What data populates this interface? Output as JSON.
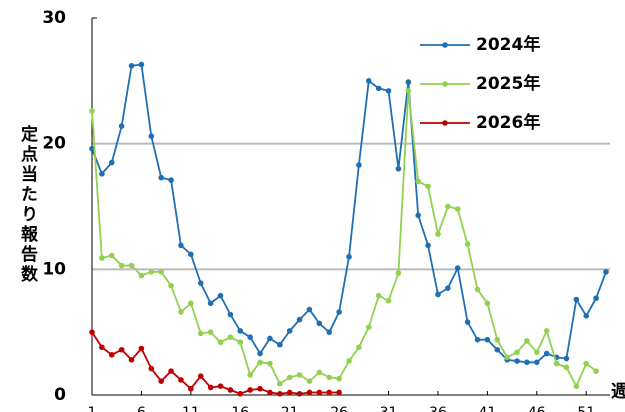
{
  "chart_data": {
    "type": "line",
    "ylabel": "定点当たり報告数",
    "xlabel": "週",
    "x": [
      1,
      2,
      3,
      4,
      5,
      6,
      7,
      8,
      9,
      10,
      11,
      12,
      13,
      14,
      15,
      16,
      17,
      18,
      19,
      20,
      21,
      22,
      23,
      24,
      25,
      26,
      27,
      28,
      29,
      30,
      31,
      32,
      33,
      34,
      35,
      36,
      37,
      38,
      39,
      40,
      41,
      42,
      43,
      44,
      45,
      46,
      47,
      48,
      49,
      50,
      51,
      52,
      53
    ],
    "series": [
      {
        "name": "2024年",
        "color": "#1f6fb4",
        "values": [
          19.6,
          17.6,
          18.5,
          21.4,
          26.2,
          26.3,
          20.6,
          17.3,
          17.1,
          11.9,
          11.2,
          8.9,
          7.3,
          7.9,
          6.4,
          5.1,
          4.6,
          3.3,
          4.5,
          4.0,
          5.1,
          6.0,
          6.8,
          5.7,
          5.0,
          6.6,
          11.0,
          18.3,
          25.0,
          24.4,
          24.2,
          18.0,
          24.9,
          14.3,
          11.9,
          8.0,
          8.5,
          10.1,
          5.8,
          4.4,
          4.4,
          3.6,
          2.8,
          2.7,
          2.6,
          2.6,
          3.3,
          3.0,
          2.9,
          7.6,
          6.3,
          7.7,
          9.8
        ]
      },
      {
        "name": "2025年",
        "color": "#92d050",
        "values": [
          22.6,
          10.9,
          11.1,
          10.3,
          10.3,
          9.5,
          9.8,
          9.8,
          8.7,
          6.6,
          7.3,
          4.9,
          5.0,
          4.2,
          4.6,
          4.2,
          1.6,
          2.6,
          2.5,
          0.9,
          1.4,
          1.6,
          1.1,
          1.8,
          1.4,
          1.3,
          2.7,
          3.8,
          5.4,
          7.9,
          7.5,
          9.7,
          24.2,
          17.0,
          16.6,
          12.8,
          15.0,
          14.8,
          12.0,
          8.4,
          7.3,
          4.4,
          3.0,
          3.4,
          4.3,
          3.4,
          5.1,
          2.5,
          2.2,
          0.7,
          2.5,
          1.9,
          null
        ]
      },
      {
        "name": "2026年",
        "color": "#c00000",
        "values": [
          5.0,
          3.8,
          3.2,
          3.6,
          2.8,
          3.7,
          2.1,
          1.1,
          1.9,
          1.2,
          0.5,
          1.5,
          0.6,
          0.7,
          0.4,
          0.1,
          0.4,
          0.5,
          0.2,
          0.1,
          0.2,
          0.1,
          0.2,
          0.2,
          0.2,
          0.2,
          null,
          null,
          null,
          null,
          null,
          null,
          null,
          null,
          null,
          null,
          null,
          null,
          null,
          null,
          null,
          null,
          null,
          null,
          null,
          null,
          null,
          null,
          null,
          null,
          null,
          null,
          null
        ]
      }
    ],
    "xlim": [
      1,
      53
    ],
    "xticks": [
      1,
      6,
      11,
      16,
      21,
      26,
      31,
      36,
      41,
      46,
      51
    ],
    "ylim": [
      0,
      30
    ],
    "yticks": [
      0,
      10,
      20,
      30
    ],
    "grid": true,
    "legend": "upper right"
  }
}
